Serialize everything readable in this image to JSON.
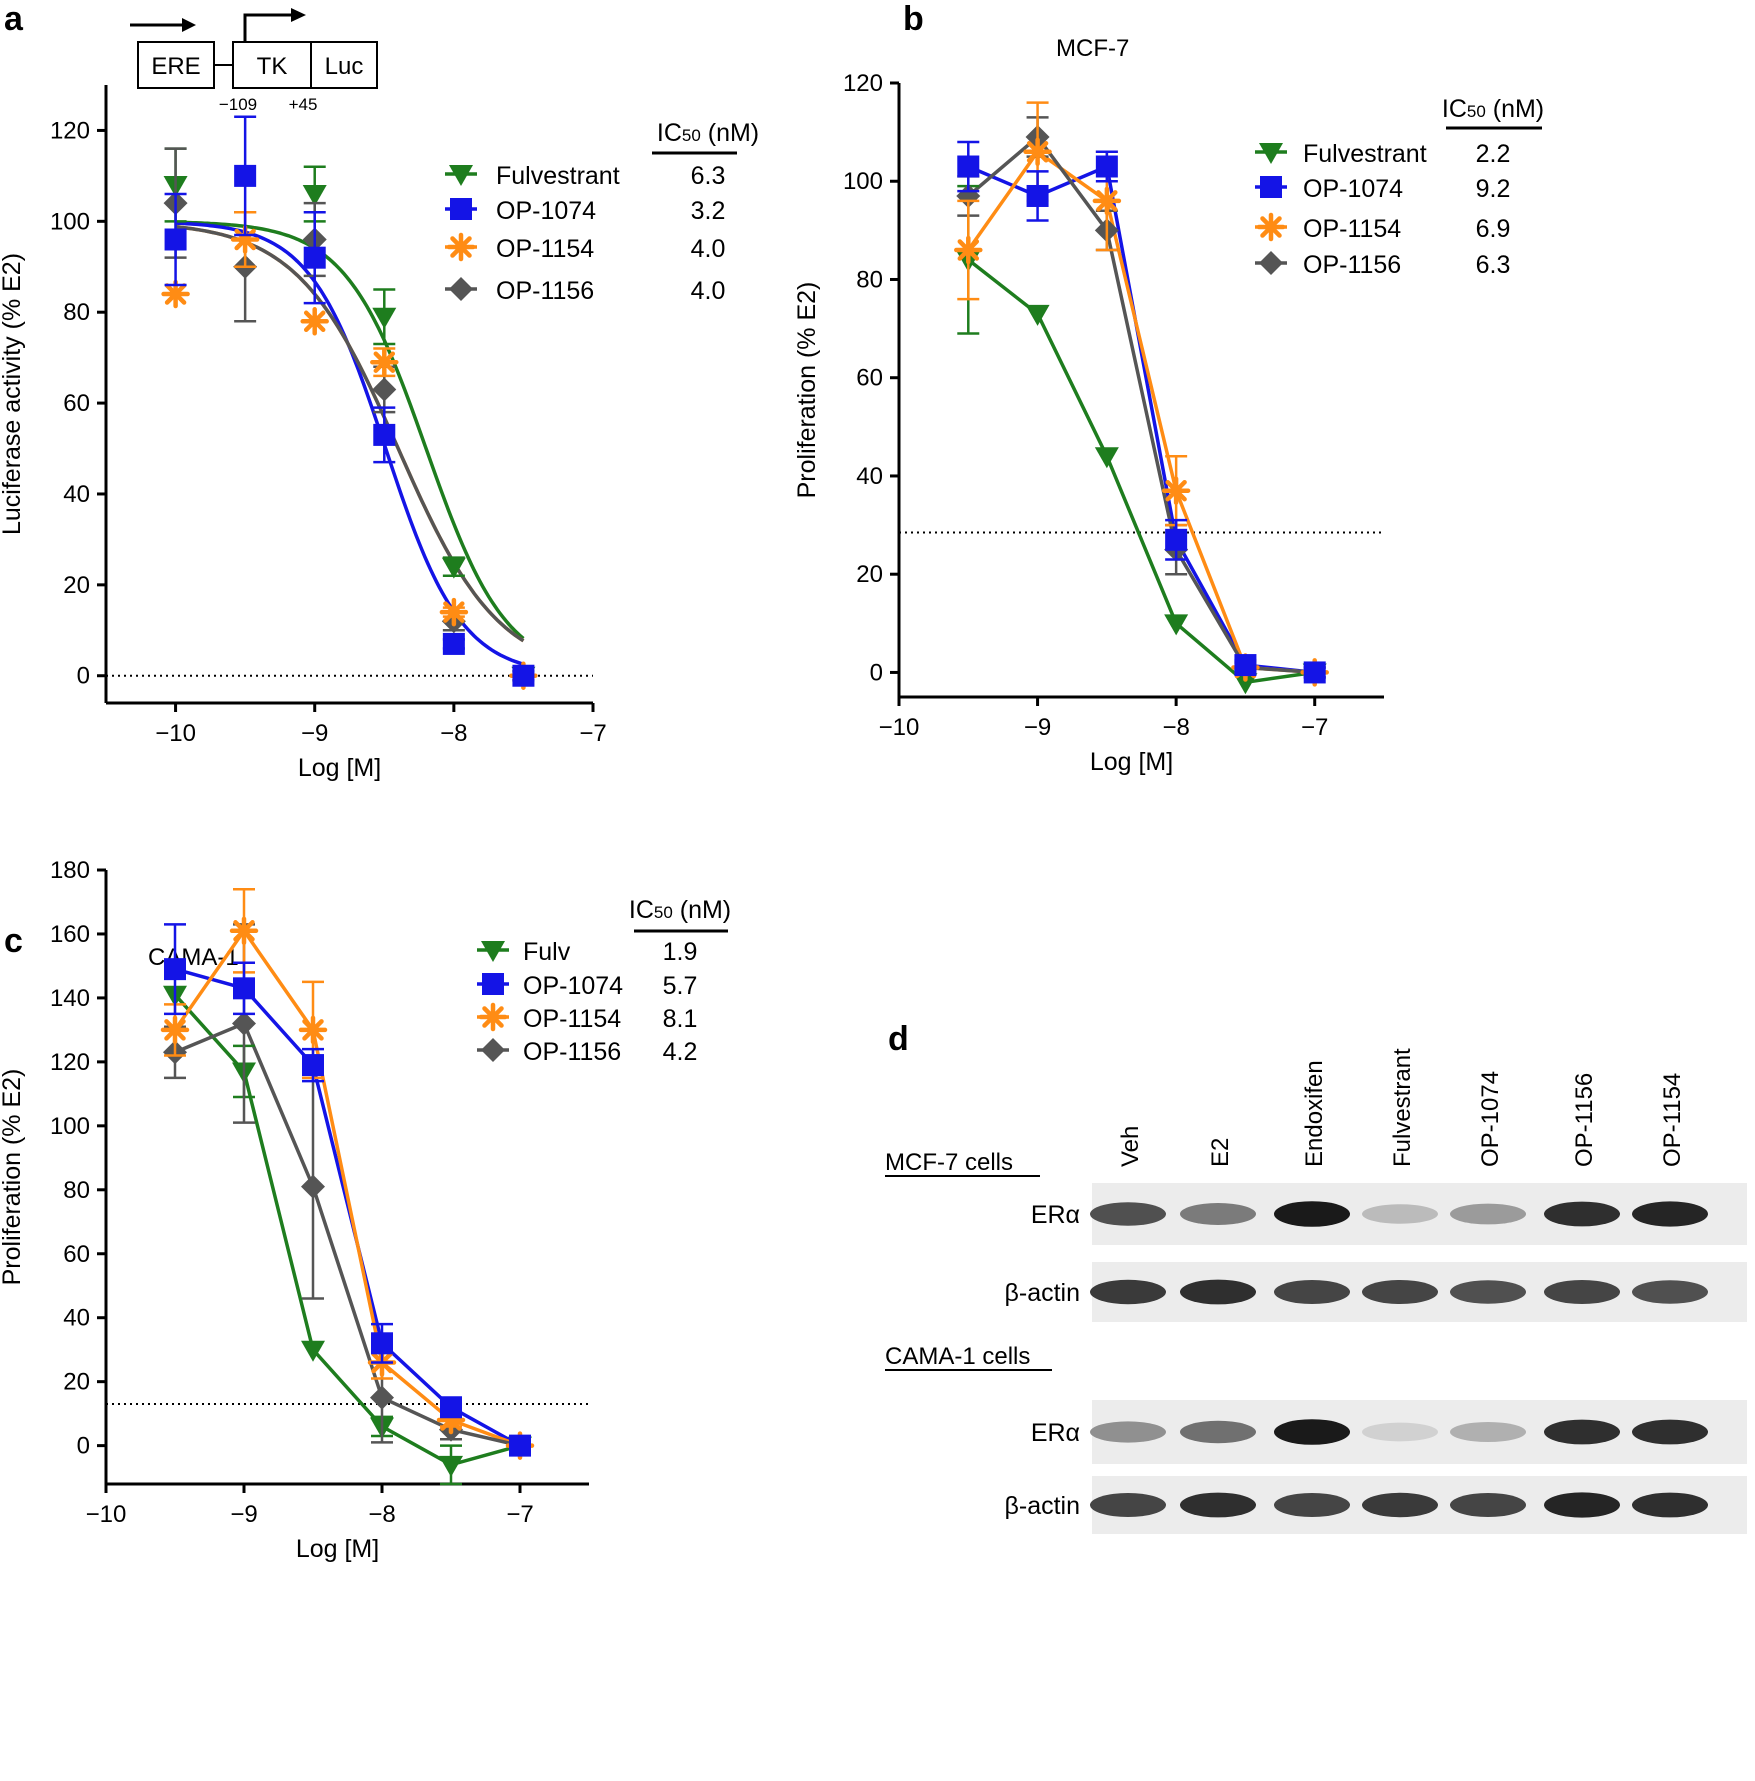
{
  "colors": {
    "fulvestrant": "#1e7d1e",
    "op1074": "#1414e6",
    "op1154": "#ff8c14",
    "op1156": "#555555",
    "axis": "#000000"
  },
  "chart_data": [
    {
      "id": "a",
      "type": "line",
      "panel_letter": "a",
      "title": "",
      "construct": {
        "boxes": [
          "ERE",
          "TK",
          "Luc"
        ],
        "positions": [
          "−109",
          "+45"
        ]
      },
      "xlabel": "Log [M]",
      "ylabel": "Luciferase activity (% E2)",
      "xlim": [
        -10.5,
        -7
      ],
      "ylim": [
        -6,
        130
      ],
      "xticks": [
        -10,
        -9,
        -8,
        -7
      ],
      "xtick_labels": [
        "−10",
        "−9",
        "−8",
        "−7"
      ],
      "yticks": [
        0,
        20,
        40,
        60,
        80,
        100,
        120
      ],
      "ytick_labels": [
        "0",
        "20",
        "40",
        "60",
        "80",
        "100",
        "120"
      ],
      "reference_line": 0,
      "fit_curves": true,
      "ic50_header": "IC",
      "ic50_sub": "50",
      "ic50_unit": " (nM)",
      "series": [
        {
          "name": "Fulvestrant",
          "color_key": "fulvestrant",
          "marker": "triangle-down",
          "ic50": "6.3",
          "x": [
            -10,
            -9,
            -8.5,
            -8,
            -7.5
          ],
          "y": [
            108,
            106,
            79,
            24,
            0
          ],
          "err": [
            8,
            6,
            6,
            2,
            1
          ],
          "ic50_log": -8.2
        },
        {
          "name": "OP-1074",
          "color_key": "op1074",
          "marker": "square",
          "ic50": "3.2",
          "x": [
            -10,
            -9.5,
            -9,
            -8.5,
            -8,
            -7.5
          ],
          "y": [
            96,
            110,
            92,
            53,
            7,
            0
          ],
          "err": [
            10,
            13,
            10,
            6,
            1,
            1
          ],
          "ic50_log": -8.49
        },
        {
          "name": "OP-1154",
          "color_key": "op1154",
          "marker": "asterisk",
          "ic50": "4.0",
          "x": [
            -10,
            -9.5,
            -9,
            -8.5,
            -8,
            -7.5
          ],
          "y": [
            84,
            96,
            78,
            69,
            14,
            0
          ],
          "err": [
            0,
            6,
            0,
            3,
            1,
            1
          ],
          "ic50_log": -8.4
        },
        {
          "name": "OP-1156",
          "color_key": "op1156",
          "marker": "diamond",
          "ic50": "4.0",
          "x": [
            -10,
            -9.5,
            -9,
            -8.5,
            -8,
            -7.5
          ],
          "y": [
            104,
            90,
            96,
            63,
            12,
            0
          ],
          "err": [
            12,
            12,
            8,
            5,
            2,
            1
          ],
          "ic50_log": -8.4
        }
      ]
    },
    {
      "id": "b",
      "type": "line",
      "panel_letter": "b",
      "title": "MCF-7",
      "xlabel": "Log [M]",
      "ylabel": "Proliferation (% E2)",
      "xlim": [
        -10,
        -6.5
      ],
      "ylim": [
        -5,
        120
      ],
      "xticks": [
        -10,
        -9,
        -8,
        -7
      ],
      "xtick_labels": [
        "−10",
        "−9",
        "−8",
        "−7"
      ],
      "yticks": [
        0,
        20,
        40,
        60,
        80,
        100,
        120
      ],
      "ytick_labels": [
        "0",
        "20",
        "40",
        "60",
        "80",
        "100",
        "120"
      ],
      "reference_line": 28.5,
      "fit_curves": false,
      "ic50_header": "IC",
      "ic50_sub": "50",
      "ic50_unit": " (nM)",
      "series": [
        {
          "name": "Fulvestrant",
          "color_key": "fulvestrant",
          "marker": "triangle-down",
          "ic50": "2.2",
          "x": [
            -9.5,
            -9,
            -8.5,
            -8,
            -7.5,
            -7
          ],
          "y": [
            84,
            73,
            44,
            10,
            -2,
            0
          ],
          "err": [
            15,
            0,
            0,
            0,
            0,
            0
          ]
        },
        {
          "name": "OP-1074",
          "color_key": "op1074",
          "marker": "square",
          "ic50": "9.2",
          "x": [
            -9.5,
            -9,
            -8.5,
            -8,
            -7.5,
            -7
          ],
          "y": [
            103,
            97,
            103,
            27,
            1.5,
            0
          ],
          "err": [
            5,
            5,
            3,
            4,
            1,
            1
          ]
        },
        {
          "name": "OP-1154",
          "color_key": "op1154",
          "marker": "asterisk",
          "ic50": "6.9",
          "x": [
            -9.5,
            -9,
            -8.5,
            -8,
            -7.5,
            -7
          ],
          "y": [
            86,
            106,
            96,
            37,
            1,
            0
          ],
          "err": [
            10,
            10,
            10,
            7,
            1,
            1
          ]
        },
        {
          "name": "OP-1156",
          "color_key": "op1156",
          "marker": "diamond",
          "ic50": "6.3",
          "x": [
            -9.5,
            -9,
            -8.5,
            -8,
            -7.5,
            -7
          ],
          "y": [
            97,
            109,
            90,
            25,
            1,
            0
          ],
          "err": [
            4,
            4,
            4,
            5,
            1,
            1
          ]
        }
      ]
    },
    {
      "id": "c",
      "type": "line",
      "panel_letter": "c",
      "title": "CAMA-1",
      "xlabel": "Log [M]",
      "ylabel": "Proliferation (% E2)",
      "xlim": [
        -10,
        -6.5
      ],
      "ylim": [
        -12,
        180
      ],
      "xticks": [
        -10,
        -9,
        -8,
        -7
      ],
      "xtick_labels": [
        "−10",
        "−9",
        "−8",
        "−7"
      ],
      "yticks": [
        0,
        20,
        40,
        60,
        80,
        100,
        120,
        140,
        160,
        180
      ],
      "ytick_labels": [
        "0",
        "20",
        "40",
        "60",
        "80",
        "100",
        "120",
        "140",
        "160",
        "180"
      ],
      "reference_line": 13,
      "fit_curves": false,
      "ic50_header": "IC",
      "ic50_sub": "50",
      "ic50_unit": " (nM)",
      "series": [
        {
          "name": "Fulv",
          "color_key": "fulvestrant",
          "marker": "triangle-down",
          "ic50": "1.9",
          "x": [
            -9.5,
            -9,
            -8.5,
            -8,
            -7.5,
            -7
          ],
          "y": [
            141,
            117,
            30,
            6,
            -6,
            0
          ],
          "err": [
            0,
            8,
            0,
            3,
            6,
            1
          ]
        },
        {
          "name": "OP-1074",
          "color_key": "op1074",
          "marker": "square",
          "ic50": "5.7",
          "x": [
            -9.5,
            -9,
            -8.5,
            -8,
            -7.5,
            -7
          ],
          "y": [
            149,
            143,
            119,
            32,
            12,
            0
          ],
          "err": [
            14,
            8,
            5,
            6,
            2,
            1
          ]
        },
        {
          "name": "OP-1154",
          "color_key": "op1154",
          "marker": "asterisk",
          "ic50": "8.1",
          "x": [
            -9.5,
            -9,
            -8.5,
            -8,
            -7.5,
            -7
          ],
          "y": [
            130,
            161,
            130,
            26,
            8,
            0
          ],
          "err": [
            8,
            13,
            15,
            5,
            2,
            1
          ]
        },
        {
          "name": "OP-1156",
          "color_key": "op1156",
          "marker": "diamond",
          "ic50": "4.2",
          "x": [
            -9.5,
            -9,
            -8.5,
            -8,
            -7.5,
            -7
          ],
          "y": [
            123,
            132,
            81,
            15,
            5,
            0
          ],
          "err": [
            8,
            31,
            35,
            14,
            3,
            1
          ]
        }
      ]
    }
  ],
  "blot": {
    "panel_letter": "d",
    "lanes": [
      "Veh",
      "E2",
      "Endoxifen",
      "Fulvestrant",
      "OP-1074",
      "OP-1156",
      "OP-1154"
    ],
    "groups": [
      {
        "cells_label": "MCF-7 cells",
        "rows": [
          {
            "label": "ERα",
            "intensities": [
              0.7,
              0.5,
              0.95,
              0.2,
              0.35,
              0.85,
              0.9
            ]
          },
          {
            "label": "β-actin",
            "intensities": [
              0.8,
              0.85,
              0.75,
              0.75,
              0.7,
              0.75,
              0.7
            ]
          }
        ]
      },
      {
        "cells_label": "CAMA-1 cells",
        "rows": [
          {
            "label": "ERα",
            "intensities": [
              0.4,
              0.55,
              0.95,
              0.1,
              0.25,
              0.85,
              0.85
            ]
          },
          {
            "label": "β-actin",
            "intensities": [
              0.75,
              0.85,
              0.75,
              0.8,
              0.75,
              0.9,
              0.85
            ]
          }
        ]
      }
    ]
  }
}
